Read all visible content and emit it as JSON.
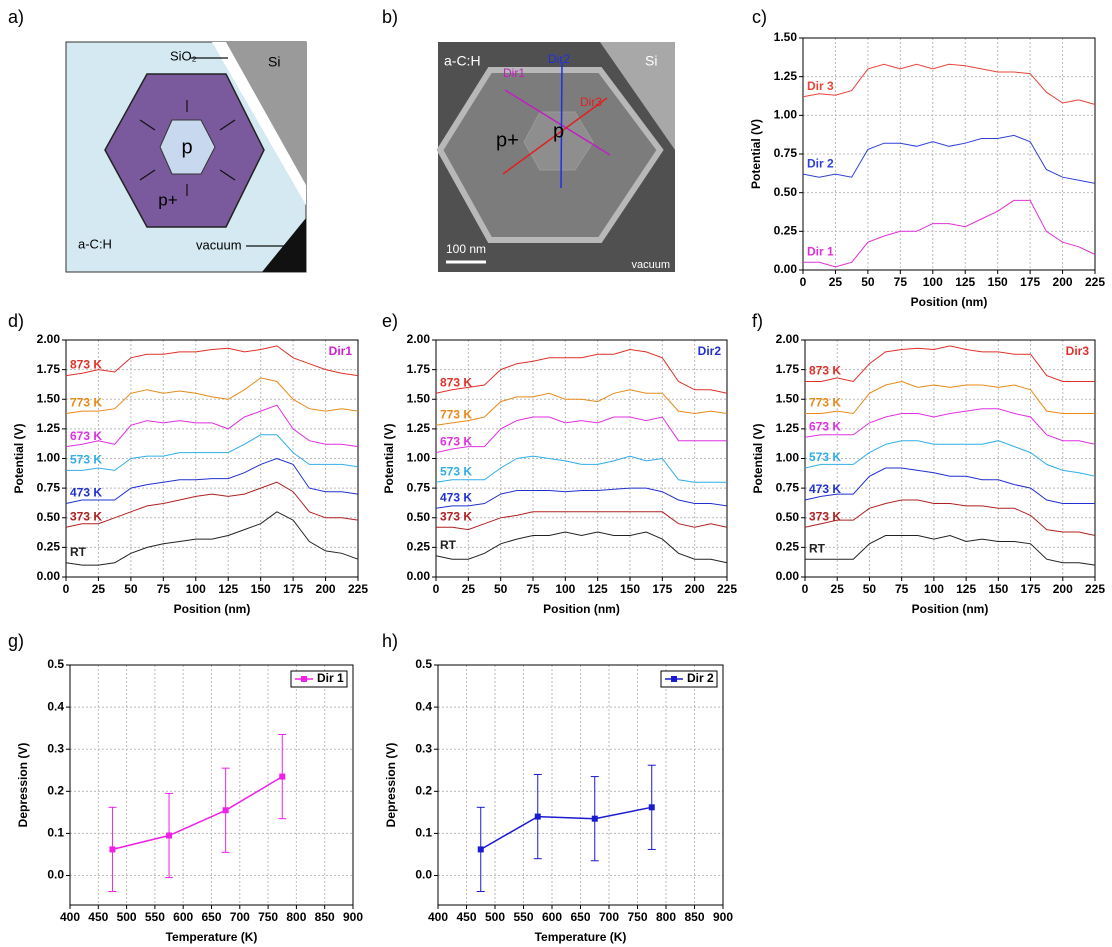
{
  "schematic": {
    "panel": "a)",
    "labels": {
      "sio2": "SiO₂",
      "si": "Si",
      "p": "p",
      "p_plus": "p+",
      "ac_h": "a-C:H",
      "vacuum": "vacuum"
    }
  },
  "micrograph": {
    "panel": "b)",
    "labels": {
      "ac_h": "a-C:H",
      "si": "Si",
      "dir1": "Dir1",
      "dir2": "Dir2",
      "dir3": "Dir3",
      "p_plus": "p+",
      "p": "p",
      "scale": "100 nm",
      "vacuum": "vacuum"
    }
  },
  "chart_data": [
    {
      "type": "line",
      "panel": "c)",
      "xlabel": "Position (nm)",
      "ylabel": "Potential (V)",
      "grid": true,
      "x": [
        0,
        12.5,
        25,
        37.5,
        50,
        62.5,
        75,
        87.5,
        100,
        112.5,
        125,
        137.5,
        150,
        162.5,
        175,
        187.5,
        200,
        212.5,
        225
      ],
      "xlim": [
        0,
        225
      ],
      "xticks": [
        0,
        25,
        50,
        75,
        100,
        125,
        150,
        175,
        200,
        225
      ],
      "ylim": [
        0,
        1.5
      ],
      "yticks": [
        {
          "value": 0,
          "label": "0.00"
        },
        {
          "value": 0.25,
          "label": "0.25"
        },
        {
          "value": 0.5,
          "label": "0.50"
        },
        {
          "value": 0.75,
          "label": "0.75"
        },
        {
          "value": 1,
          "label": "1.00"
        },
        {
          "value": 1.25,
          "label": "1.25"
        },
        {
          "value": 1.5,
          "label": "1.50"
        }
      ],
      "series": [
        {
          "name": "Dir 3",
          "color": "#e8443a",
          "values": [
            1.12,
            1.14,
            1.13,
            1.16,
            1.3,
            1.33,
            1.3,
            1.33,
            1.3,
            1.33,
            1.32,
            1.3,
            1.28,
            1.28,
            1.27,
            1.15,
            1.08,
            1.1,
            1.07
          ]
        },
        {
          "name": "Dir 2",
          "color": "#3040d8",
          "values": [
            0.62,
            0.6,
            0.62,
            0.6,
            0.78,
            0.82,
            0.82,
            0.8,
            0.83,
            0.8,
            0.82,
            0.85,
            0.85,
            0.87,
            0.83,
            0.65,
            0.6,
            0.58,
            0.56
          ]
        },
        {
          "name": "Dir 1",
          "color": "#e030d8",
          "values": [
            0.05,
            0.05,
            0.02,
            0.05,
            0.18,
            0.22,
            0.25,
            0.25,
            0.3,
            0.3,
            0.28,
            0.33,
            0.38,
            0.45,
            0.45,
            0.25,
            0.18,
            0.15,
            0.1
          ]
        }
      ]
    },
    {
      "type": "line",
      "panel": "d)",
      "xlabel": "Position (nm)",
      "ylabel": "Potential (V)",
      "grid": true,
      "annotation": "Dir1",
      "annotation_color": "#d020d0",
      "x": [
        0,
        12.5,
        25,
        37.5,
        50,
        62.5,
        75,
        87.5,
        100,
        112.5,
        125,
        137.5,
        150,
        162.5,
        175,
        187.5,
        200,
        212.5,
        225
      ],
      "xlim": [
        0,
        225
      ],
      "xticks": [
        0,
        25,
        50,
        75,
        100,
        125,
        150,
        175,
        200,
        225
      ],
      "ylim": [
        0,
        2
      ],
      "yticks": [
        {
          "value": 0,
          "label": "0.00"
        },
        {
          "value": 0.25,
          "label": "0.25"
        },
        {
          "value": 0.5,
          "label": "0.50"
        },
        {
          "value": 0.75,
          "label": "0.75"
        },
        {
          "value": 1,
          "label": "1.00"
        },
        {
          "value": 1.25,
          "label": "1.25"
        },
        {
          "value": 1.5,
          "label": "1.50"
        },
        {
          "value": 1.75,
          "label": "1.75"
        },
        {
          "value": 2,
          "label": "2.00"
        }
      ],
      "series": [
        {
          "name": "873 K",
          "color": "#e0302a",
          "values": [
            1.7,
            1.72,
            1.75,
            1.73,
            1.85,
            1.88,
            1.88,
            1.9,
            1.9,
            1.92,
            1.93,
            1.9,
            1.92,
            1.95,
            1.85,
            1.8,
            1.75,
            1.72,
            1.7
          ]
        },
        {
          "name": "773 K",
          "color": "#e88a1a",
          "values": [
            1.38,
            1.4,
            1.4,
            1.42,
            1.55,
            1.58,
            1.55,
            1.57,
            1.55,
            1.52,
            1.5,
            1.58,
            1.68,
            1.65,
            1.5,
            1.42,
            1.4,
            1.42,
            1.4
          ]
        },
        {
          "name": "673 K",
          "color": "#e030e0",
          "values": [
            1.1,
            1.12,
            1.15,
            1.12,
            1.28,
            1.32,
            1.3,
            1.32,
            1.3,
            1.3,
            1.25,
            1.35,
            1.4,
            1.45,
            1.25,
            1.15,
            1.12,
            1.12,
            1.1
          ]
        },
        {
          "name": "573 K",
          "color": "#30aee8",
          "values": [
            0.9,
            0.9,
            0.92,
            0.9,
            1.0,
            1.02,
            1.02,
            1.05,
            1.05,
            1.05,
            1.05,
            1.12,
            1.2,
            1.2,
            1.05,
            0.95,
            0.95,
            0.95,
            0.93
          ]
        },
        {
          "name": "473 K",
          "color": "#2030d0",
          "values": [
            0.62,
            0.65,
            0.65,
            0.65,
            0.75,
            0.78,
            0.8,
            0.82,
            0.82,
            0.83,
            0.83,
            0.88,
            0.95,
            1.0,
            0.95,
            0.75,
            0.72,
            0.72,
            0.7
          ]
        },
        {
          "name": "373 K",
          "color": "#b02020",
          "values": [
            0.42,
            0.45,
            0.45,
            0.5,
            0.55,
            0.6,
            0.62,
            0.65,
            0.68,
            0.7,
            0.68,
            0.7,
            0.75,
            0.8,
            0.72,
            0.55,
            0.5,
            0.5,
            0.48
          ]
        },
        {
          "name": "RT",
          "color": "#222222",
          "values": [
            0.12,
            0.1,
            0.1,
            0.12,
            0.2,
            0.25,
            0.28,
            0.3,
            0.32,
            0.32,
            0.35,
            0.4,
            0.45,
            0.55,
            0.48,
            0.3,
            0.22,
            0.2,
            0.15
          ]
        }
      ]
    },
    {
      "type": "line",
      "panel": "e)",
      "xlabel": "Position (nm)",
      "ylabel": "Potential (V)",
      "grid": true,
      "annotation": "Dir2",
      "annotation_color": "#2030d0",
      "x": [
        0,
        12.5,
        25,
        37.5,
        50,
        62.5,
        75,
        87.5,
        100,
        112.5,
        125,
        137.5,
        150,
        162.5,
        175,
        187.5,
        200,
        212.5,
        225
      ],
      "xlim": [
        0,
        225
      ],
      "xticks": [
        0,
        25,
        50,
        75,
        100,
        125,
        150,
        175,
        200,
        225
      ],
      "ylim": [
        0,
        2
      ],
      "yticks": [
        {
          "value": 0,
          "label": "0.00"
        },
        {
          "value": 0.25,
          "label": "0.25"
        },
        {
          "value": 0.5,
          "label": "0.50"
        },
        {
          "value": 0.75,
          "label": "0.75"
        },
        {
          "value": 1,
          "label": "1.00"
        },
        {
          "value": 1.25,
          "label": "1.25"
        },
        {
          "value": 1.5,
          "label": "1.50"
        },
        {
          "value": 1.75,
          "label": "1.75"
        },
        {
          "value": 2,
          "label": "2.00"
        }
      ],
      "series": [
        {
          "name": "873 K",
          "color": "#e0302a",
          "values": [
            1.55,
            1.58,
            1.6,
            1.62,
            1.75,
            1.8,
            1.82,
            1.85,
            1.85,
            1.85,
            1.88,
            1.88,
            1.92,
            1.9,
            1.85,
            1.65,
            1.58,
            1.58,
            1.55
          ]
        },
        {
          "name": "773 K",
          "color": "#e88a1a",
          "values": [
            1.28,
            1.3,
            1.32,
            1.35,
            1.48,
            1.52,
            1.52,
            1.55,
            1.5,
            1.5,
            1.48,
            1.55,
            1.58,
            1.55,
            1.55,
            1.4,
            1.38,
            1.4,
            1.38
          ]
        },
        {
          "name": "673 K",
          "color": "#e030e0",
          "values": [
            1.05,
            1.08,
            1.1,
            1.1,
            1.25,
            1.32,
            1.35,
            1.35,
            1.3,
            1.32,
            1.3,
            1.35,
            1.35,
            1.32,
            1.35,
            1.15,
            1.15,
            1.15,
            1.15
          ]
        },
        {
          "name": "573 K",
          "color": "#30aee8",
          "values": [
            0.8,
            0.82,
            0.82,
            0.82,
            0.92,
            1.0,
            1.02,
            1.0,
            0.98,
            0.95,
            0.95,
            0.98,
            1.02,
            0.98,
            1.0,
            0.82,
            0.8,
            0.8,
            0.8
          ]
        },
        {
          "name": "473 K",
          "color": "#2030d0",
          "values": [
            0.58,
            0.6,
            0.6,
            0.62,
            0.7,
            0.73,
            0.73,
            0.73,
            0.72,
            0.73,
            0.73,
            0.74,
            0.75,
            0.75,
            0.72,
            0.65,
            0.62,
            0.62,
            0.6
          ]
        },
        {
          "name": "373 K",
          "color": "#b02020",
          "values": [
            0.42,
            0.42,
            0.4,
            0.45,
            0.5,
            0.52,
            0.55,
            0.55,
            0.55,
            0.55,
            0.55,
            0.55,
            0.55,
            0.55,
            0.55,
            0.45,
            0.42,
            0.45,
            0.42
          ]
        },
        {
          "name": "RT",
          "color": "#222222",
          "values": [
            0.18,
            0.15,
            0.15,
            0.2,
            0.28,
            0.32,
            0.35,
            0.35,
            0.38,
            0.35,
            0.38,
            0.35,
            0.35,
            0.38,
            0.32,
            0.2,
            0.15,
            0.15,
            0.12
          ]
        }
      ]
    },
    {
      "type": "line",
      "panel": "f)",
      "xlabel": "Position (nm)",
      "ylabel": "Potential (V)",
      "grid": true,
      "annotation": "Dir3",
      "annotation_color": "#e0302a",
      "x": [
        0,
        12.5,
        25,
        37.5,
        50,
        62.5,
        75,
        87.5,
        100,
        112.5,
        125,
        137.5,
        150,
        162.5,
        175,
        187.5,
        200,
        212.5,
        225
      ],
      "xlim": [
        0,
        225
      ],
      "xticks": [
        0,
        25,
        50,
        75,
        100,
        125,
        150,
        175,
        200,
        225
      ],
      "ylim": [
        0,
        2
      ],
      "yticks": [
        {
          "value": 0,
          "label": "0.00"
        },
        {
          "value": 0.25,
          "label": "0.25"
        },
        {
          "value": 0.5,
          "label": "0.50"
        },
        {
          "value": 0.75,
          "label": "0.75"
        },
        {
          "value": 1,
          "label": "1.00"
        },
        {
          "value": 1.25,
          "label": "1.25"
        },
        {
          "value": 1.5,
          "label": "1.50"
        },
        {
          "value": 1.75,
          "label": "1.75"
        },
        {
          "value": 2,
          "label": "2.00"
        }
      ],
      "series": [
        {
          "name": "873 K",
          "color": "#e0302a",
          "values": [
            1.65,
            1.65,
            1.68,
            1.65,
            1.8,
            1.9,
            1.92,
            1.93,
            1.92,
            1.95,
            1.92,
            1.9,
            1.9,
            1.88,
            1.88,
            1.7,
            1.65,
            1.65,
            1.65
          ]
        },
        {
          "name": "773 K",
          "color": "#e88a1a",
          "values": [
            1.38,
            1.38,
            1.4,
            1.38,
            1.55,
            1.62,
            1.65,
            1.6,
            1.62,
            1.6,
            1.62,
            1.62,
            1.6,
            1.62,
            1.58,
            1.4,
            1.38,
            1.38,
            1.38
          ]
        },
        {
          "name": "673 K",
          "color": "#e030e0",
          "values": [
            1.18,
            1.2,
            1.2,
            1.2,
            1.3,
            1.35,
            1.38,
            1.38,
            1.35,
            1.38,
            1.4,
            1.42,
            1.42,
            1.38,
            1.35,
            1.2,
            1.15,
            1.15,
            1.12
          ]
        },
        {
          "name": "573 K",
          "color": "#30aee8",
          "values": [
            0.92,
            0.95,
            0.95,
            0.95,
            1.05,
            1.12,
            1.15,
            1.15,
            1.12,
            1.12,
            1.12,
            1.12,
            1.15,
            1.1,
            1.05,
            0.95,
            0.9,
            0.88,
            0.85
          ]
        },
        {
          "name": "473 K",
          "color": "#2030d0",
          "values": [
            0.65,
            0.68,
            0.7,
            0.7,
            0.85,
            0.92,
            0.92,
            0.9,
            0.88,
            0.85,
            0.85,
            0.82,
            0.82,
            0.78,
            0.75,
            0.65,
            0.62,
            0.62,
            0.62
          ]
        },
        {
          "name": "373 K",
          "color": "#b02020",
          "values": [
            0.42,
            0.45,
            0.48,
            0.48,
            0.58,
            0.62,
            0.65,
            0.65,
            0.62,
            0.62,
            0.6,
            0.6,
            0.58,
            0.58,
            0.52,
            0.4,
            0.38,
            0.38,
            0.35
          ]
        },
        {
          "name": "RT",
          "color": "#222222",
          "values": [
            0.15,
            0.15,
            0.15,
            0.15,
            0.28,
            0.35,
            0.35,
            0.35,
            0.32,
            0.35,
            0.3,
            0.32,
            0.3,
            0.3,
            0.28,
            0.15,
            0.12,
            0.12,
            0.1
          ]
        }
      ]
    },
    {
      "type": "errorline",
      "panel": "g)",
      "xlabel": "Temperature (K)",
      "ylabel": "Depression (V)",
      "grid": true,
      "legend": "upper right",
      "x": [
        475,
        575,
        675,
        775
      ],
      "xlim": [
        400,
        900
      ],
      "xticks": [
        400,
        450,
        500,
        550,
        600,
        650,
        700,
        750,
        800,
        850,
        900
      ],
      "ylim": [
        -0.07,
        0.5
      ],
      "yticks": [
        {
          "value": 0,
          "label": "0.0"
        },
        0.1,
        0.2,
        0.3,
        0.4,
        0.5
      ],
      "series": [
        {
          "name": "Dir 1",
          "color": "#f020e8",
          "values": [
            0.062,
            0.095,
            0.155,
            0.235
          ],
          "errors": [
            0.1,
            0.1,
            0.1,
            0.1
          ]
        }
      ]
    },
    {
      "type": "errorline",
      "panel": "h)",
      "xlabel": "Temperature (K)",
      "ylabel": "Depression (V)",
      "grid": true,
      "legend": "upper right",
      "x": [
        475,
        575,
        675,
        775
      ],
      "xlim": [
        400,
        900
      ],
      "xticks": [
        400,
        450,
        500,
        550,
        600,
        650,
        700,
        750,
        800,
        850,
        900
      ],
      "ylim": [
        -0.07,
        0.5
      ],
      "yticks": [
        {
          "value": 0,
          "label": "0.0"
        },
        0.1,
        0.2,
        0.3,
        0.4,
        0.5
      ],
      "series": [
        {
          "name": "Dir 2",
          "color": "#1a1ad0",
          "values": [
            0.062,
            0.14,
            0.135,
            0.162
          ],
          "errors": [
            0.1,
            0.1,
            0.1,
            0.1
          ]
        }
      ]
    }
  ]
}
